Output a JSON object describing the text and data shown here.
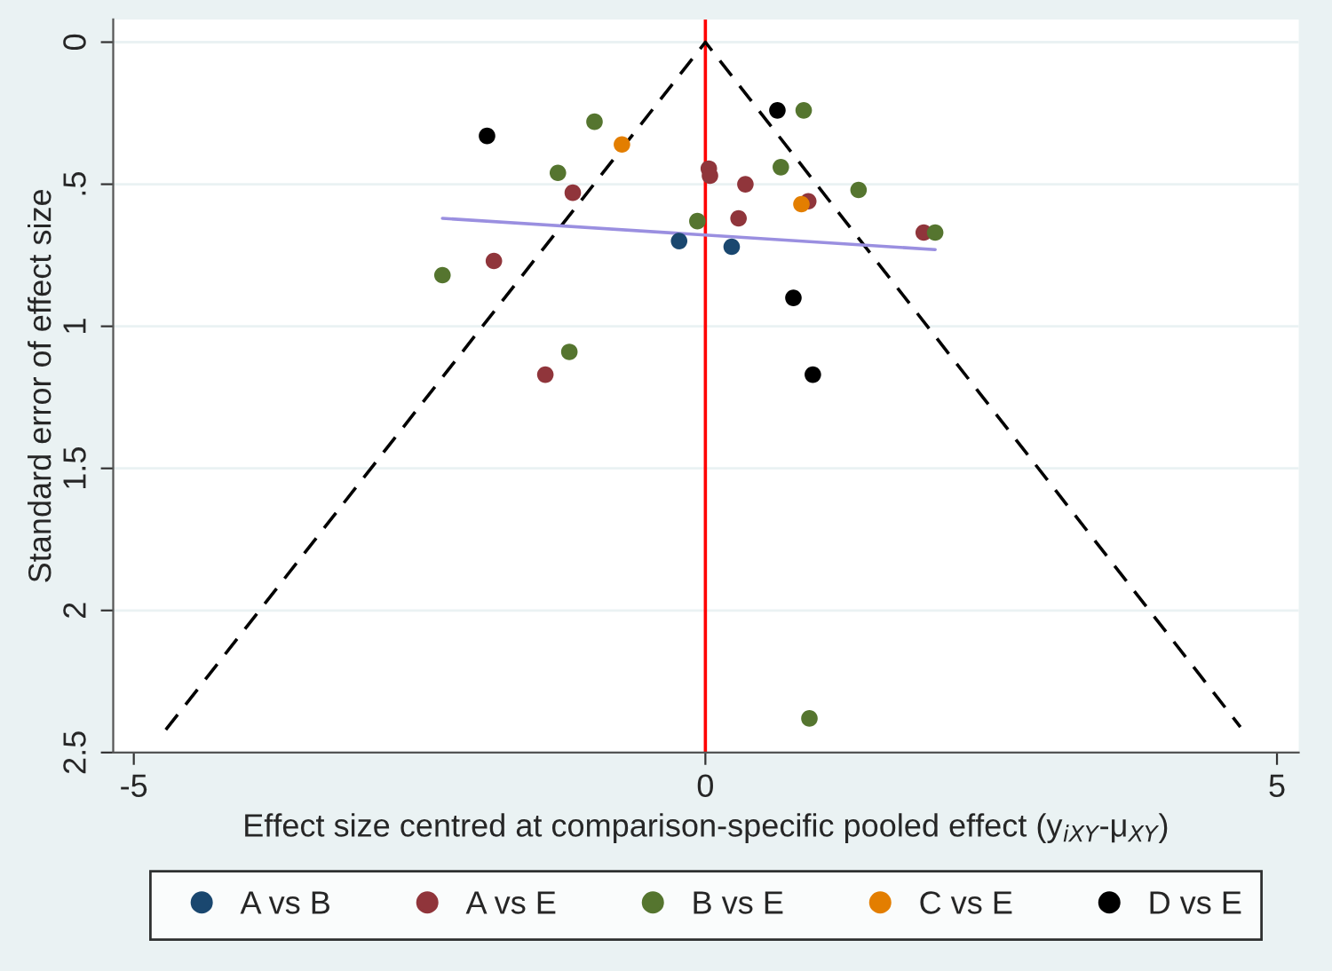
{
  "chart_data": {
    "type": "scatter",
    "xlabel": "Effect size centred at comparison-specific pooled effect (y$_{iXY}$-μ$_{XY}$)",
    "ylabel": "Standard error of effect size",
    "xlim": [
      -5.18,
      5.19
    ],
    "ylim": [
      2.5,
      -0.08
    ],
    "xticks": [
      -5,
      0,
      5
    ],
    "yticks": [
      {
        "value": 0,
        "label": "0"
      },
      {
        "value": 0.5,
        "label": ".5"
      },
      {
        "value": 1,
        "label": "1"
      },
      {
        "value": 1.5,
        "label": "1.5"
      },
      {
        "value": 2,
        "label": "2"
      },
      {
        "value": 2.5,
        "label": "2.5"
      }
    ],
    "grid": "y",
    "legend": "bottom",
    "marker": "circle",
    "ref_lines": [
      {
        "axis": "x",
        "value": 0,
        "color": "#ff0000"
      }
    ],
    "series": [
      {
        "type": "line",
        "color": "#000000",
        "line_style": "dashed",
        "marker": "none",
        "x": [
          -4.72,
          0,
          4.68
        ],
        "values": [
          2.42,
          0,
          2.41
        ]
      },
      {
        "type": "line",
        "color": "#9a8fe0",
        "line_style": "solid",
        "marker": "none",
        "x": [
          -2.3,
          2.01
        ],
        "values": [
          0.62,
          0.73
        ]
      },
      {
        "name": "A vs B",
        "color": "#1a476f",
        "x": [
          -0.23,
          0.23
        ],
        "values": [
          0.7,
          0.72
        ]
      },
      {
        "name": "A vs E",
        "color": "#90353b",
        "x": [
          -1.85,
          -1.16,
          -1.4,
          0.03,
          0.04,
          0.35,
          0.29,
          0.9,
          1.91
        ],
        "values": [
          0.77,
          0.53,
          1.17,
          0.445,
          0.47,
          0.5,
          0.62,
          0.56,
          0.67
        ]
      },
      {
        "name": "B vs E",
        "color": "#55752f",
        "x": [
          -0.97,
          -1.29,
          -2.3,
          -1.19,
          -0.07,
          0.66,
          0.86,
          1.34,
          2.01,
          0.91
        ],
        "values": [
          0.28,
          0.46,
          0.82,
          1.09,
          0.63,
          0.44,
          0.24,
          0.52,
          0.67,
          2.38
        ]
      },
      {
        "name": "C vs E",
        "color": "#e37e00",
        "x": [
          -0.73,
          0.84
        ],
        "values": [
          0.36,
          0.57
        ]
      },
      {
        "name": "D vs E",
        "color": "#000000",
        "x": [
          -1.91,
          0.63,
          0.77,
          0.94
        ],
        "values": [
          0.33,
          0.24,
          0.9,
          1.17
        ]
      }
    ]
  }
}
